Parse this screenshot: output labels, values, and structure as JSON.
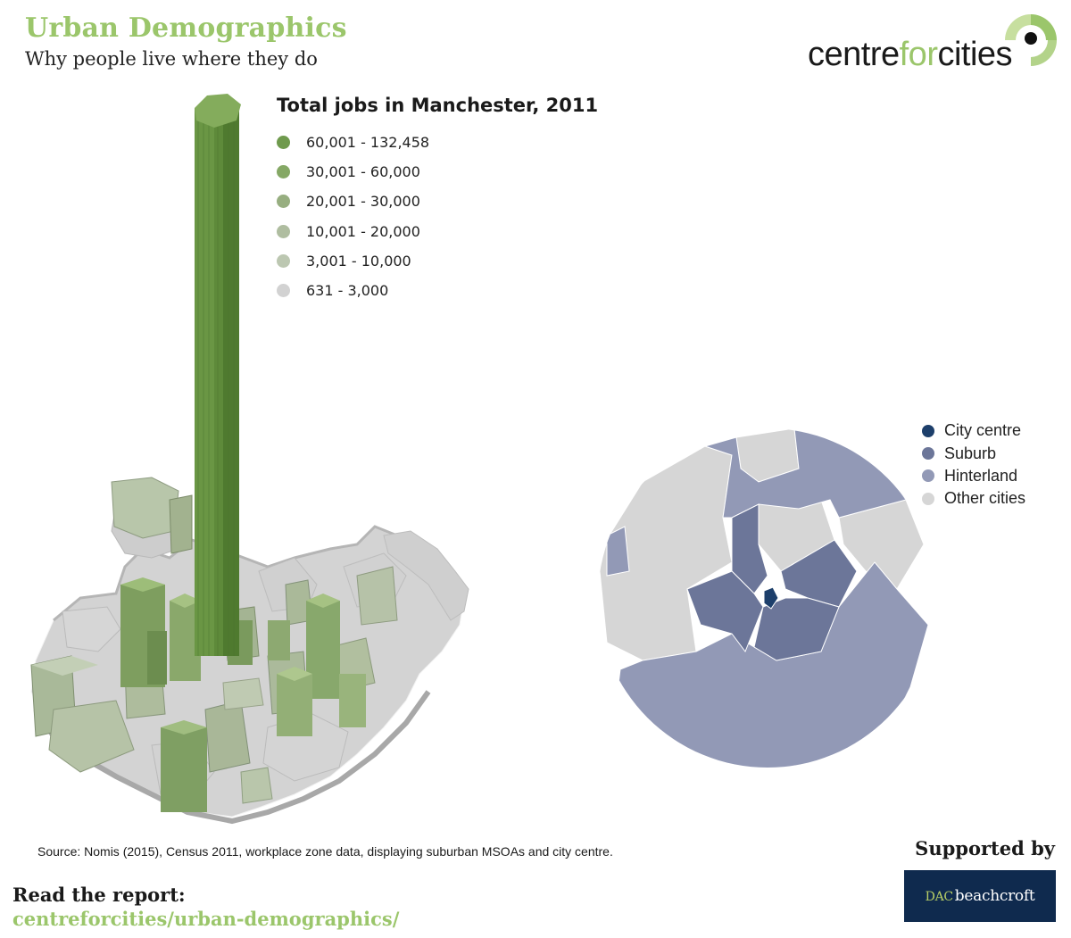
{
  "header": {
    "title": "Urban Demographics",
    "subtitle": "Why people live where they do"
  },
  "brand": {
    "logo_text_start": "centre",
    "logo_text_mid": "for",
    "logo_text_end": "cities"
  },
  "jobs_legend": {
    "title": "Total jobs in Manchester, 2011",
    "items": [
      {
        "label": "60,001 - 132,458",
        "color": "#6f9a4d"
      },
      {
        "label": "30,001 - 60,000",
        "color": "#85a865"
      },
      {
        "label": "20,001 - 30,000",
        "color": "#97ae80"
      },
      {
        "label": "10,001 - 20,000",
        "color": "#afbda0"
      },
      {
        "label": "3,001 - 10,000",
        "color": "#bcc7b1"
      },
      {
        "label": "631 - 3,000",
        "color": "#d2d2d2"
      }
    ]
  },
  "zone_legend": {
    "items": [
      {
        "label": "City centre",
        "color": "#1d3f6b"
      },
      {
        "label": "Suburb",
        "color": "#6c7699"
      },
      {
        "label": "Hinterland",
        "color": "#9299b6"
      },
      {
        "label": "Other cities",
        "color": "#d6d6d6"
      }
    ]
  },
  "source_note": "Source: Nomis (2015), Census 2011, workplace zone data, displaying suburban MSOAs and city centre.",
  "supported_by": "Supported by",
  "sponsor": {
    "prefix": "DAC",
    "name": "beachcroft"
  },
  "report": {
    "label": "Read the report:",
    "link": "centreforcities/urban-demographics/"
  }
}
